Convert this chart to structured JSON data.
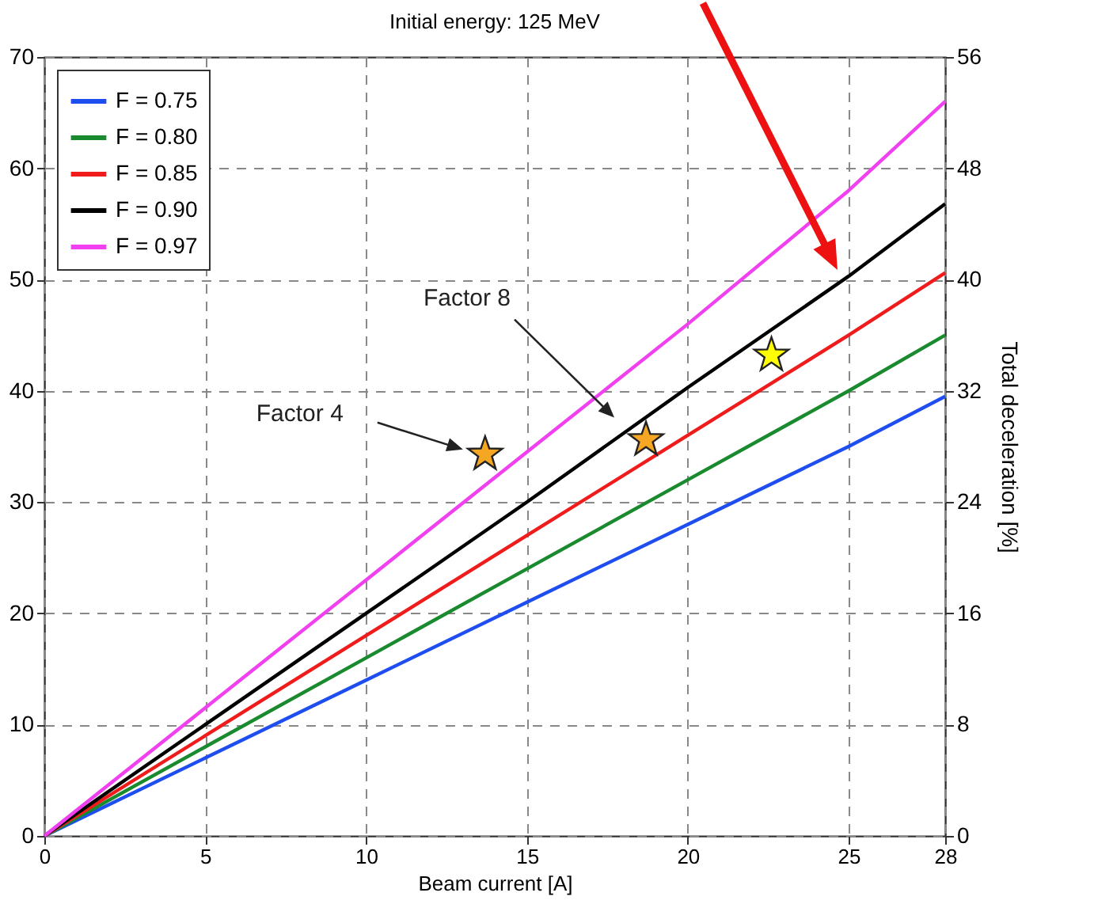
{
  "chart_data": {
    "type": "line",
    "title": "Initial energy: 125 MeV",
    "xlabel": "Beam current [A]",
    "y2label": "Total deceleration [%]",
    "x": [
      0,
      5,
      10,
      15,
      20,
      25,
      28
    ],
    "series": [
      {
        "name": "F = 0.75",
        "color": "#1f4ef0",
        "values": [
          0,
          7,
          14,
          21,
          28,
          35,
          39.5
        ]
      },
      {
        "name": "F = 0.80",
        "color": "#1a8a2e",
        "values": [
          0,
          8,
          16,
          24,
          32,
          40,
          45
        ]
      },
      {
        "name": "F = 0.85",
        "color": "#f01c1c",
        "values": [
          0,
          9,
          18,
          27,
          36,
          45,
          50.6
        ]
      },
      {
        "name": "F = 0.90",
        "color": "#000000",
        "values": [
          0,
          10,
          20,
          30,
          40.3,
          50.3,
          56.8
        ]
      },
      {
        "name": "F = 0.97",
        "color": "#f040f0",
        "values": [
          0,
          11.5,
          23,
          34.5,
          46,
          58,
          66
        ]
      },
      {
        "type": "scatter",
        "color": "#f5a623",
        "marker": "star",
        "x": [
          13.7,
          18.7
        ],
        "values": [
          34.3,
          35.6
        ]
      },
      {
        "type": "scatter",
        "color": "#ffff00",
        "marker": "star",
        "x": [
          22.6
        ],
        "values": [
          43.2
        ]
      }
    ],
    "annotations": [
      "Factor 4",
      "Factor 8"
    ],
    "xlim": [
      0,
      28
    ],
    "xticks": [
      0,
      5,
      10,
      15,
      20,
      25,
      28
    ],
    "ylim": [
      0,
      70
    ],
    "yticks": [
      0,
      10,
      20,
      30,
      40,
      50,
      60,
      70
    ],
    "y2lim": [
      0,
      56
    ],
    "y2ticks": [
      0,
      8,
      16,
      24,
      32,
      40,
      48,
      56
    ],
    "grid": true,
    "legend": "top left",
    "line_style": "solid"
  }
}
